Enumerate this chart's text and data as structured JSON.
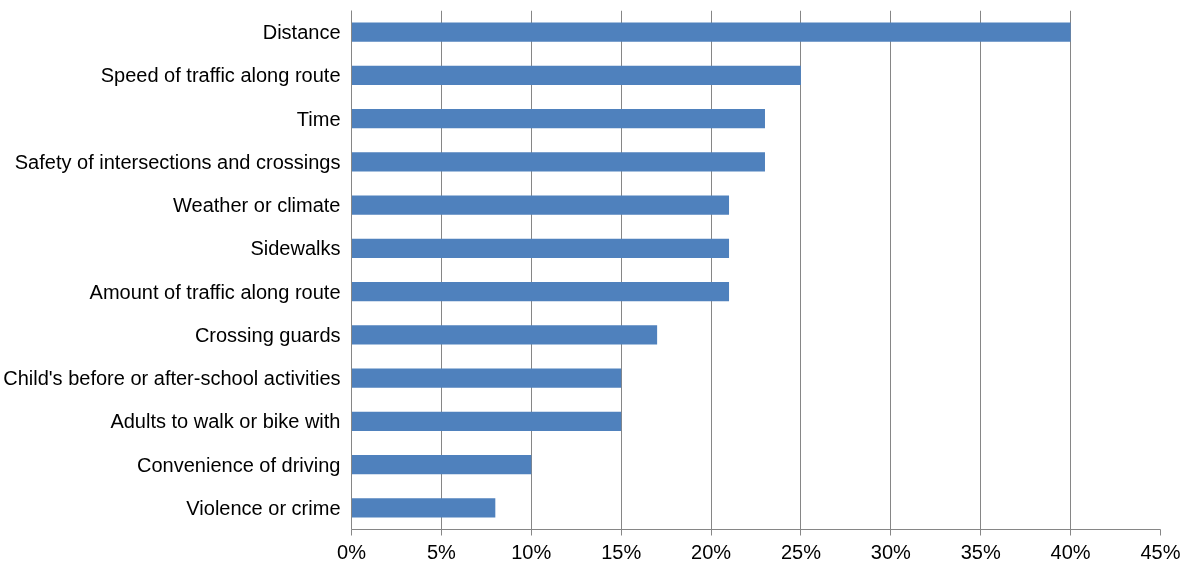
{
  "chart_data": {
    "type": "bar",
    "orientation": "horizontal",
    "categories": [
      "Distance",
      "Speed of traffic along route",
      "Time",
      "Safety of intersections and crossings",
      "Weather or climate",
      "Sidewalks",
      "Amount of traffic along route",
      "Crossing guards",
      "Child's before or after-school activities",
      "Adults to walk or bike with",
      "Convenience of driving",
      "Violence or crime"
    ],
    "values": [
      40,
      25,
      23,
      23,
      21,
      21,
      21,
      17,
      15,
      15,
      10,
      8
    ],
    "color": "#4f81bd",
    "xlim": [
      0,
      45
    ],
    "xticks": [
      {
        "value": 0,
        "label": "0%"
      },
      {
        "value": 5,
        "label": "5%"
      },
      {
        "value": 10,
        "label": "10%"
      },
      {
        "value": 15,
        "label": "15%"
      },
      {
        "value": 20,
        "label": "20%"
      },
      {
        "value": 25,
        "label": "25%"
      },
      {
        "value": 30,
        "label": "30%"
      },
      {
        "value": 35,
        "label": "35%"
      },
      {
        "value": 40,
        "label": "40%"
      },
      {
        "value": 45,
        "label": "45%"
      }
    ],
    "grid": "x"
  }
}
